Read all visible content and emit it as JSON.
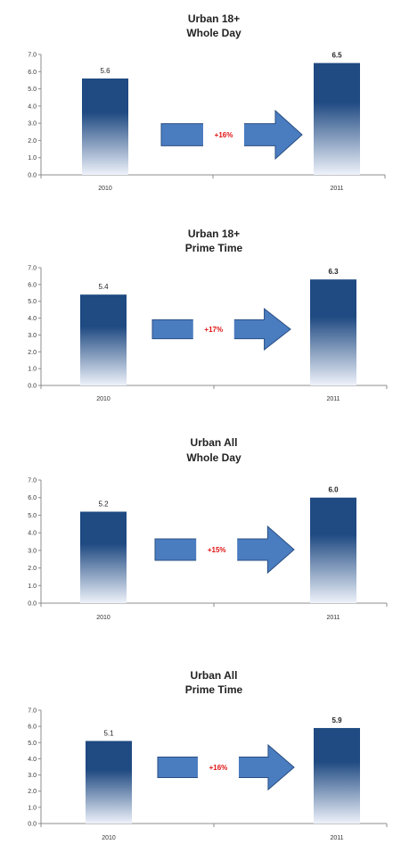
{
  "chart_data": [
    {
      "type": "bar",
      "title": [
        "Urban 18+",
        "Whole Day"
      ],
      "categories": [
        "2010",
        "2011"
      ],
      "values": [
        5.6,
        6.5
      ],
      "change_label": "+16%",
      "yticks": [
        "0.0",
        "1.0",
        "2.0",
        "3.0",
        "4.0",
        "5.0",
        "6.0",
        "7.0"
      ],
      "ylim": [
        0,
        7
      ]
    },
    {
      "type": "bar",
      "title": [
        "Urban 18+",
        "Prime Time"
      ],
      "categories": [
        "2010",
        "2011"
      ],
      "values": [
        5.4,
        6.3
      ],
      "change_label": "+17%",
      "yticks": [
        "0.0",
        "1.0",
        "2.0",
        "3.0",
        "4.0",
        "5.0",
        "6.0",
        "7.0"
      ],
      "ylim": [
        0,
        7
      ]
    },
    {
      "type": "bar",
      "title": [
        "Urban All",
        "Whole Day"
      ],
      "categories": [
        "2010",
        "2011"
      ],
      "values": [
        5.2,
        6.0
      ],
      "change_label": "+15%",
      "yticks": [
        "0.0",
        "1.0",
        "2.0",
        "3.0",
        "4.0",
        "5.0",
        "6.0",
        "7.0"
      ],
      "ylim": [
        0,
        7
      ]
    },
    {
      "type": "bar",
      "title": [
        "Urban All",
        "Prime Time"
      ],
      "categories": [
        "2010",
        "2011"
      ],
      "values": [
        5.1,
        5.9
      ],
      "change_label": "+16%",
      "yticks": [
        "0.0",
        "1.0",
        "2.0",
        "3.0",
        "4.0",
        "5.0",
        "6.0",
        "7.0"
      ],
      "ylim": [
        0,
        7
      ]
    }
  ],
  "colors": {
    "bar_top": "#1f4a82",
    "bar_bottom": "#eef2fa",
    "arrow_fill": "#4a7cc0",
    "arrow_stroke": "#2a4f82",
    "change_text": "#e01010",
    "axis": "#8c8c8c"
  }
}
